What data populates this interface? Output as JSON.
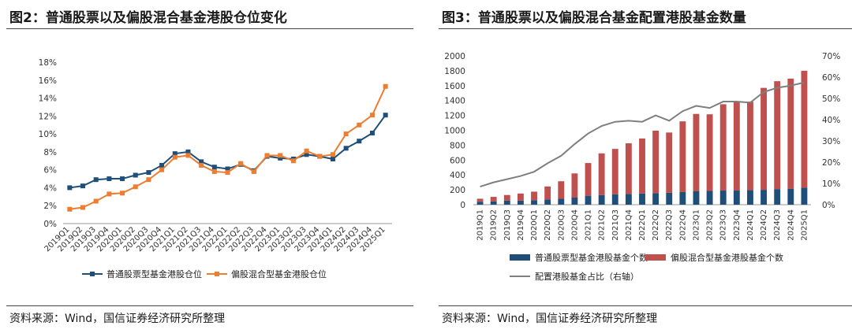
{
  "left": {
    "title": "图2：普通股票以及偏股混合基金港股仓位变化",
    "source": "资料来源：Wind，国信证券经济研究所整理"
  },
  "right": {
    "title": "图3：普通股票以及偏股混合基金配置港股基金数量",
    "source": "资料来源：Wind，国信证券经济研究所整理"
  },
  "chart_data": [
    {
      "type": "line",
      "title": "普通股票以及偏股混合基金港股仓位变化",
      "categories": [
        "2019Q1",
        "2019Q2",
        "2019Q3",
        "2019Q4",
        "2020Q1",
        "2020Q2",
        "2020Q3",
        "2020Q4",
        "2021Q1",
        "2021Q2",
        "2021Q3",
        "2021Q4",
        "2022Q1",
        "2022Q2",
        "2022Q3",
        "2022Q4",
        "2023Q1",
        "2023Q2",
        "2023Q3",
        "2023Q4",
        "2024Q1",
        "2024Q2",
        "2024Q3",
        "2024Q4",
        "2025Q1"
      ],
      "y_ticks": [
        "0%",
        "2%",
        "4%",
        "6%",
        "8%",
        "10%",
        "12%",
        "14%",
        "16%",
        "18%"
      ],
      "ylim": [
        0,
        18
      ],
      "series": [
        {
          "name": "普通股票型基金港股仓位",
          "color": "#1f4e79",
          "marker": "square",
          "values": [
            4.0,
            4.2,
            4.9,
            5.0,
            5.0,
            5.4,
            5.7,
            6.5,
            7.8,
            8.0,
            6.9,
            6.3,
            6.1,
            6.6,
            5.9,
            7.5,
            7.3,
            7.2,
            7.7,
            7.5,
            7.2,
            8.4,
            9.2,
            10.1,
            12.1
          ]
        },
        {
          "name": "偏股混合型基金港股仓位",
          "color": "#ed7d31",
          "marker": "square",
          "values": [
            1.6,
            1.8,
            2.5,
            3.3,
            3.4,
            4.1,
            4.9,
            6.0,
            7.4,
            7.6,
            6.5,
            5.8,
            5.7,
            6.7,
            5.8,
            7.6,
            7.6,
            7.0,
            8.1,
            7.5,
            7.7,
            10.0,
            11.0,
            12.1,
            15.3
          ]
        }
      ],
      "legend_position": "bottom"
    },
    {
      "type": "bar",
      "title": "普通股票以及偏股混合基金配置港股基金数量",
      "stacked": true,
      "categories": [
        "2019Q1",
        "2019Q2",
        "2019Q3",
        "2019Q4",
        "2020Q1",
        "2020Q2",
        "2020Q3",
        "2020Q4",
        "2021Q1",
        "2021Q2",
        "2021Q3",
        "2021Q4",
        "2022Q1",
        "2022Q2",
        "2022Q3",
        "2022Q4",
        "2023Q1",
        "2023Q2",
        "2023Q3",
        "2023Q4",
        "2024Q1",
        "2024Q2",
        "2024Q3",
        "2024Q4",
        "2025Q1"
      ],
      "y_ticks_left": [
        "0",
        "200",
        "400",
        "600",
        "800",
        "1000",
        "1200",
        "1400",
        "1600",
        "1800",
        "2000"
      ],
      "y_ticks_right": [
        "0%",
        "10%",
        "20%",
        "30%",
        "40%",
        "50%",
        "60%",
        "70%"
      ],
      "ylim_left": [
        0,
        2000
      ],
      "ylim_right": [
        0,
        70
      ],
      "series": [
        {
          "name": "普通股票型基金港股基金个数",
          "color": "#1f4e79",
          "kind": "bar",
          "values": [
            40,
            45,
            55,
            55,
            60,
            70,
            80,
            95,
            120,
            130,
            140,
            145,
            150,
            155,
            160,
            170,
            180,
            185,
            190,
            190,
            195,
            200,
            210,
            215,
            230
          ]
        },
        {
          "name": "偏股混合型基金港股基金个数",
          "color": "#c0504d",
          "kind": "bar",
          "values": [
            40,
            60,
            75,
            95,
            115,
            175,
            235,
            325,
            440,
            560,
            610,
            680,
            740,
            840,
            810,
            950,
            1040,
            1030,
            1160,
            1190,
            1190,
            1370,
            1450,
            1480,
            1570
          ]
        },
        {
          "name": "配置港股基金占比（右轴）",
          "color": "#7f7f7f",
          "kind": "line",
          "axis": "right",
          "values": [
            8.5,
            10.5,
            12,
            13.5,
            15.5,
            19.5,
            23,
            28.5,
            33.5,
            37,
            39,
            39.5,
            39,
            42,
            39.5,
            44,
            46.5,
            45.5,
            48.5,
            48.5,
            48,
            53,
            55,
            56,
            57.5
          ]
        }
      ],
      "legend_position": "bottom"
    }
  ]
}
